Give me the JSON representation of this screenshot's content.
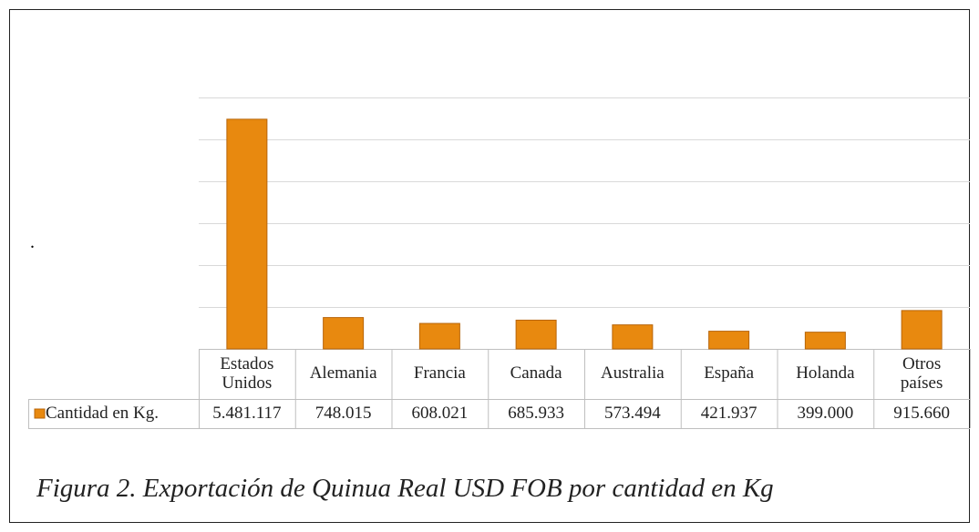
{
  "chart_data": {
    "type": "bar",
    "annotation": ".",
    "categories": [
      "Estados Unidos",
      "Alemania",
      "Francia",
      "Canada",
      "Australia",
      "España",
      "Holanda",
      "Otros países"
    ],
    "series": [
      {
        "name": "Cantidad en Kg.",
        "color": "#e8890f",
        "values": [
          5481117,
          748015,
          608021,
          685933,
          573494,
          421937,
          399000,
          915660
        ],
        "value_labels": [
          "5.481.117",
          "748.015",
          "608.021",
          "685.933",
          "573.494",
          "421.937",
          "399.000",
          "915.660"
        ]
      }
    ],
    "ylim": [
      0,
      6000000
    ],
    "yticks": [
      0,
      1000000,
      2000000,
      3000000,
      4000000,
      5000000,
      6000000
    ],
    "grid": true,
    "caption": "Figura 2. Exportación de Quinua Real USD FOB por cantidad en Kg"
  }
}
